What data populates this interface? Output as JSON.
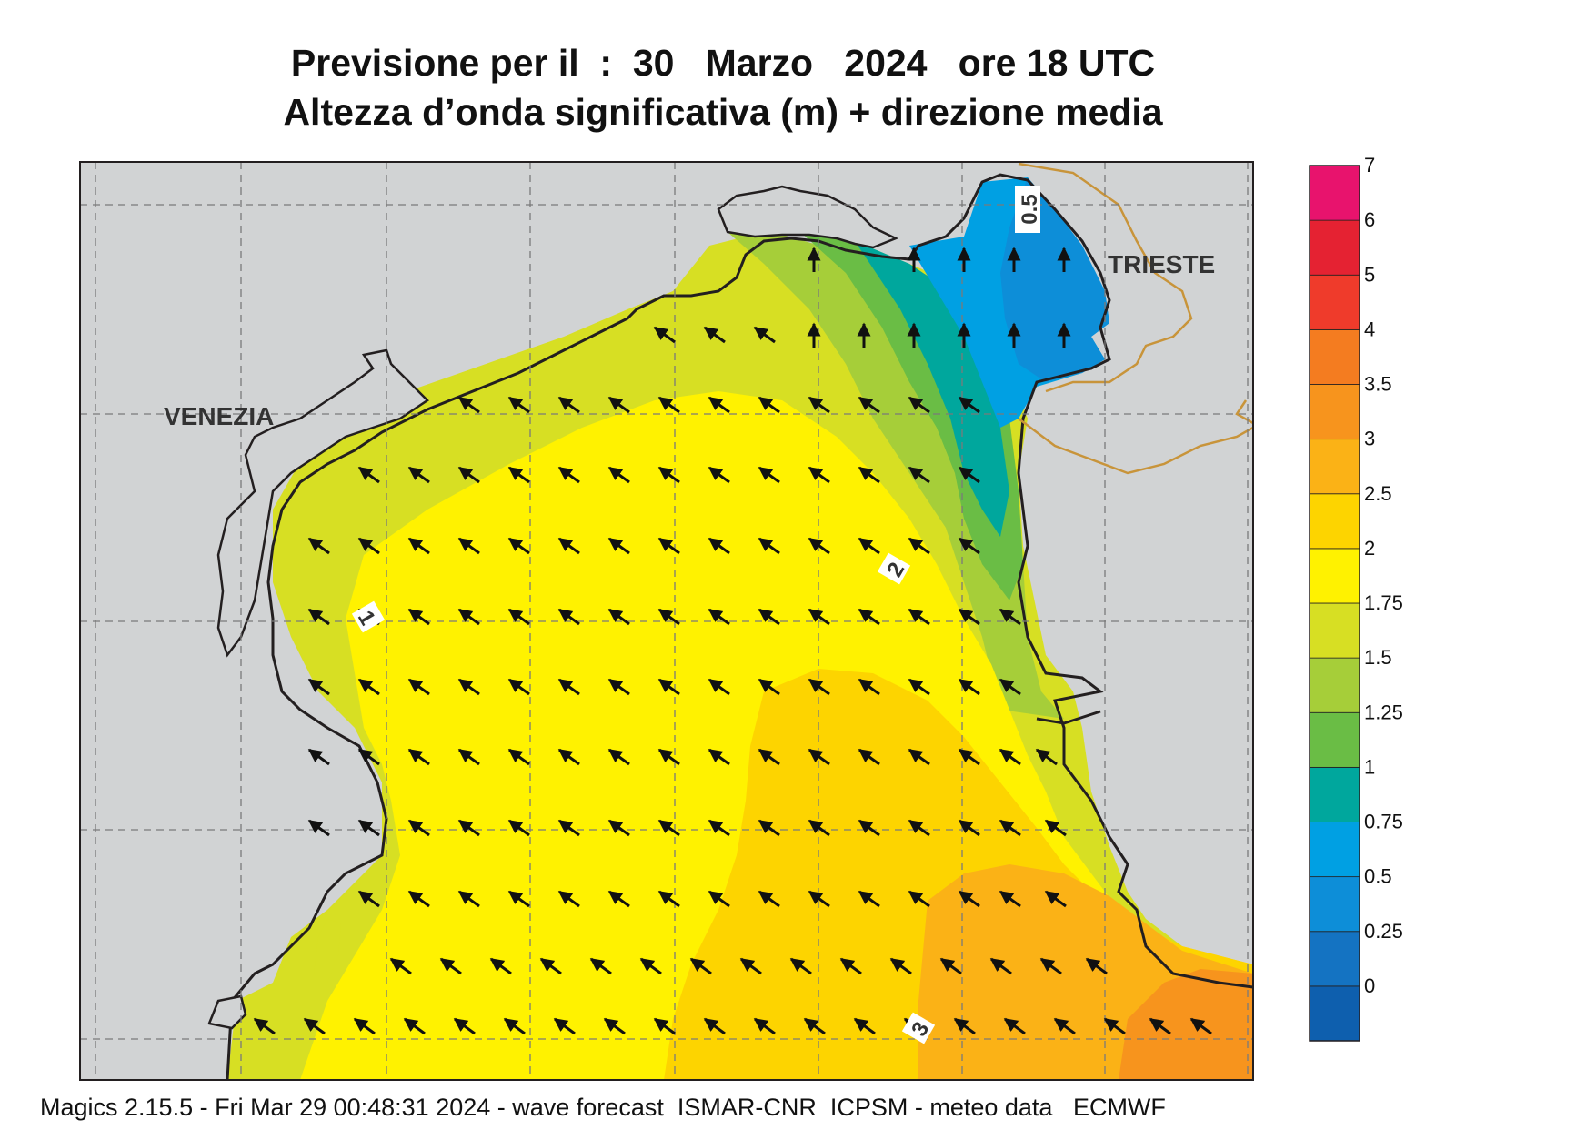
{
  "title": {
    "line1": "Previsione per il  :  30   Marzo   2024   ore 18 UTC",
    "line2": "Altezza d’onda significativa (m) + direzione media"
  },
  "map": {
    "place_labels": [
      "VENEZIA",
      "TRIESTE"
    ],
    "contour_labels": [
      "0.5",
      "1",
      "2",
      "3"
    ],
    "arrow_direction": "north-west"
  },
  "legend": {
    "ticks": [
      "7",
      "6",
      "5",
      "4",
      "3.5",
      "3",
      "2.5",
      "2",
      "1.75",
      "1.5",
      "1.25",
      "1",
      "0.75",
      "0.5",
      "0.25",
      "0"
    ],
    "colors": [
      "#e8136d",
      "#e52232",
      "#ef3b2b",
      "#f47c20",
      "#f7941d",
      "#fbb216",
      "#fdd400",
      "#fff200",
      "#d7df23",
      "#a6ce39",
      "#6abd45",
      "#00a79d",
      "#00a0e3",
      "#0d8ed8",
      "#1473c2",
      "#0e5fae"
    ]
  },
  "colors": {
    "land": "#d1d3d4",
    "coast": "#231f20",
    "border": "#c8943a",
    "grid": "#7a7a7a"
  },
  "footer": "Magics 2.15.5 - Fri Mar 29 00:48:31 2024 - wave forecast  ISMAR-CNR  ICPSM - meteo data   ECMWF"
}
